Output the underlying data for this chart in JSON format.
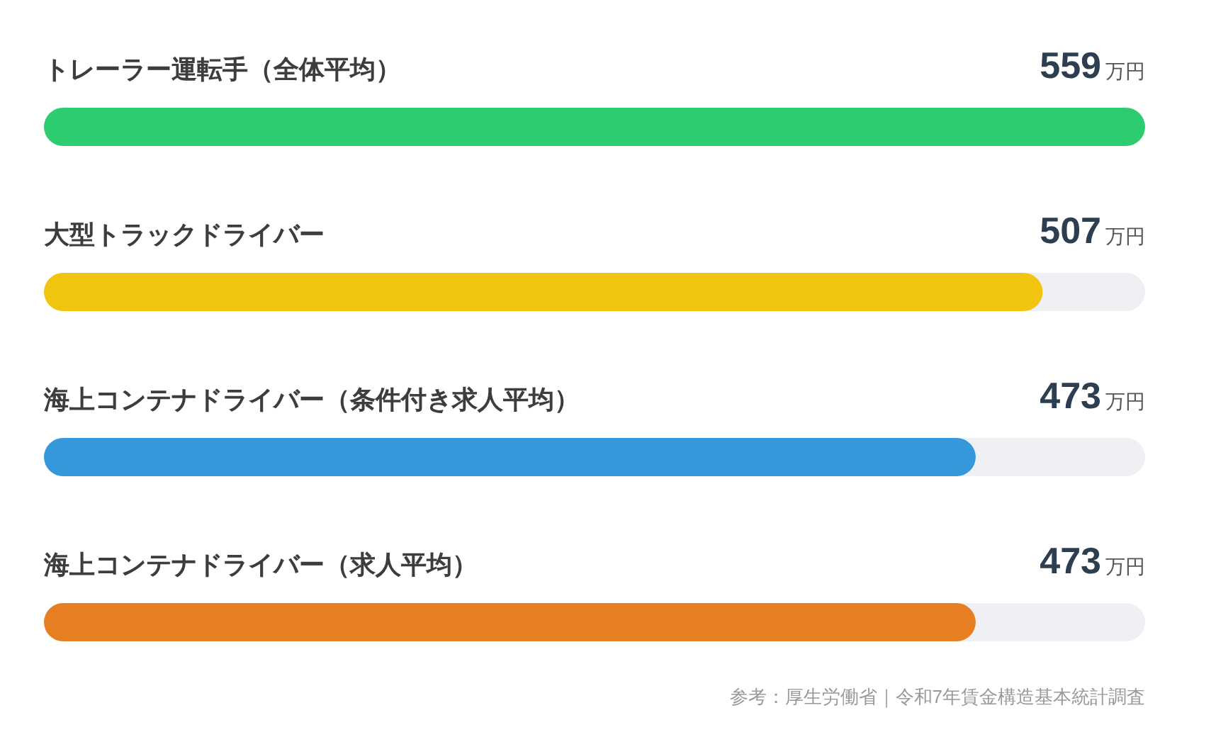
{
  "chart_data": {
    "type": "bar",
    "orientation": "horizontal",
    "categories": [
      "トレーラー運転手（全体平均）",
      "大型トラックドライバー",
      "海上コンテナドライバー（条件付き求人平均）",
      "海上コンテナドライバー（求人平均）"
    ],
    "values": [
      559,
      507,
      473,
      473
    ],
    "colors": [
      "#2ecc71",
      "#f1c40f",
      "#3498db",
      "#e67e22"
    ],
    "value_labels": [
      "559万円",
      "507万円",
      "473万円",
      "473万円"
    ],
    "xlim": [
      0,
      559
    ],
    "tick_labels": false,
    "grid": false,
    "legend": false,
    "annotations": [
      "参考：厚生労働省｜令和7年賃金構造基本統計調査"
    ]
  }
}
